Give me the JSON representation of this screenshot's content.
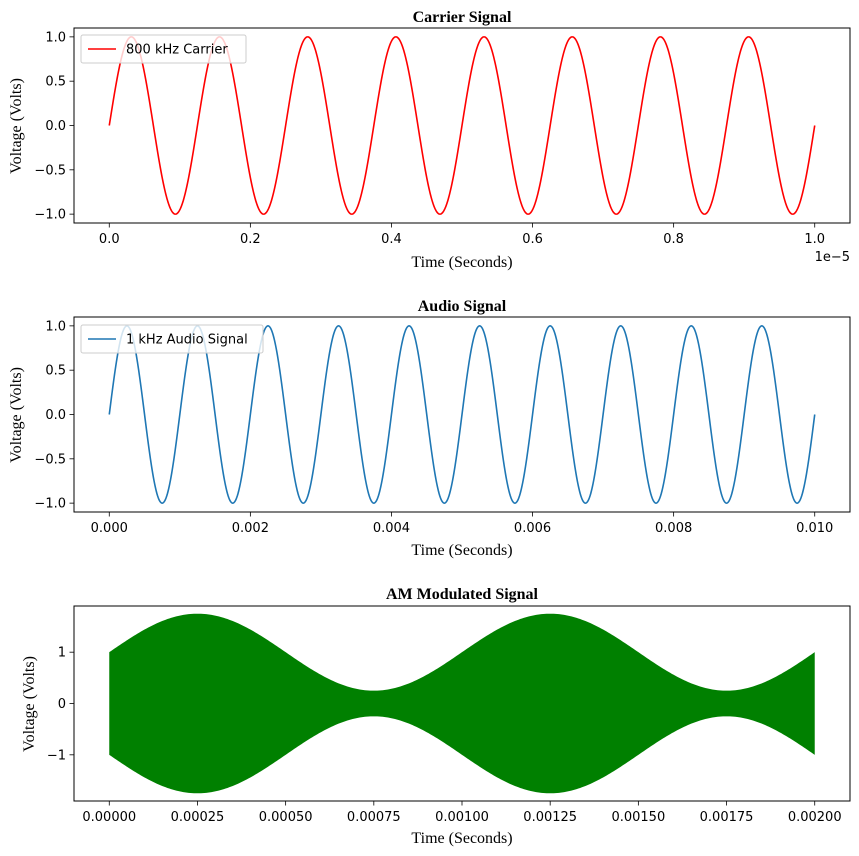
{
  "chart_data": [
    {
      "type": "line",
      "title": "Carrier Signal",
      "xlabel": "Time (Seconds)",
      "ylabel": "Voltage (Volts)",
      "x_offset_label": "1e−5",
      "xlim": [
        -0.05,
        1.05
      ],
      "ylim": [
        -1.1,
        1.1
      ],
      "x_ticks": [
        0.0,
        0.2,
        0.4,
        0.6,
        0.8,
        1.0
      ],
      "x_tick_labels": [
        "0.0",
        "0.2",
        "0.4",
        "0.6",
        "0.8",
        "1.0"
      ],
      "y_ticks": [
        1.0,
        0.5,
        0.0,
        -0.5,
        -1.0
      ],
      "y_tick_labels": [
        "1.0",
        "0.5",
        "0.0",
        "−0.5",
        "−1.0"
      ],
      "legend": "upper-left",
      "series": [
        {
          "name": "800 kHz Carrier",
          "color": "#ff0000",
          "function": "sine",
          "amplitude": 1,
          "frequency": 8.0,
          "x_start": 0.0,
          "x_end": 1.0
        }
      ]
    },
    {
      "type": "line",
      "title": "Audio Signal",
      "xlabel": "Time (Seconds)",
      "ylabel": "Voltage (Volts)",
      "xlim": [
        -0.0005,
        0.0105
      ],
      "ylim": [
        -1.1,
        1.1
      ],
      "x_ticks": [
        0.0,
        0.002,
        0.004,
        0.006,
        0.008,
        0.01
      ],
      "x_tick_labels": [
        "0.000",
        "0.002",
        "0.004",
        "0.006",
        "0.008",
        "0.010"
      ],
      "y_ticks": [
        1.0,
        0.5,
        0.0,
        -0.5,
        -1.0
      ],
      "y_tick_labels": [
        "1.0",
        "0.5",
        "0.0",
        "−0.5",
        "−1.0"
      ],
      "legend": "upper-left",
      "series": [
        {
          "name": "1 kHz Audio Signal",
          "color": "#1f77b4",
          "function": "sine",
          "amplitude": 1,
          "frequency": 1000,
          "x_start": 0.0,
          "x_end": 0.01
        }
      ]
    },
    {
      "type": "area",
      "title": "AM Modulated Signal",
      "xlabel": "Time (Seconds)",
      "ylabel": "Voltage (Volts)",
      "xlim": [
        -0.0001,
        0.0021
      ],
      "ylim": [
        -1.9,
        1.9
      ],
      "x_ticks": [
        0.0,
        0.00025,
        0.0005,
        0.00075,
        0.001,
        0.00125,
        0.0015,
        0.00175,
        0.002
      ],
      "x_tick_labels": [
        "0.00000",
        "0.00025",
        "0.00050",
        "0.00075",
        "0.00100",
        "0.00125",
        "0.00150",
        "0.00175",
        "0.00200"
      ],
      "y_ticks": [
        1,
        0,
        -1
      ],
      "y_tick_labels": [
        "1",
        "0",
        "−1"
      ],
      "series": [
        {
          "color": "#008000",
          "envelope": "1 + 0.75*sin(2*pi*1000*t)",
          "x_start": 0.0,
          "x_end": 0.002
        }
      ]
    }
  ]
}
